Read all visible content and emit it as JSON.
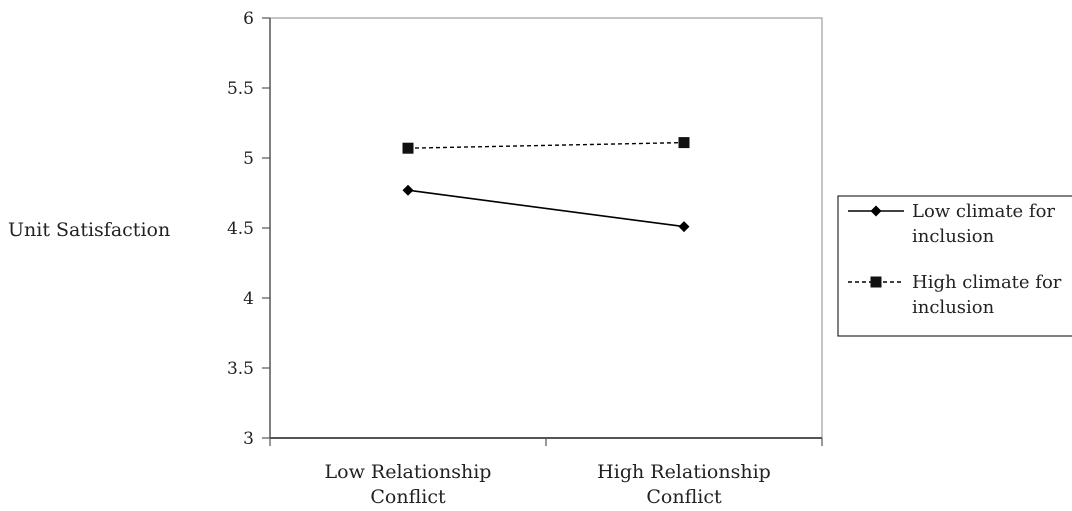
{
  "chart_data": {
    "type": "line",
    "title": "",
    "xlabel": "",
    "ylabel": "Unit Satisfaction",
    "categories": [
      [
        "Low Relationship",
        "Conflict"
      ],
      [
        "High Relationship",
        "Conflict"
      ]
    ],
    "ylim": [
      3,
      6
    ],
    "yticks": [
      "3",
      "3.5",
      "4",
      "4.5",
      "5",
      "5.5",
      "6"
    ],
    "series": [
      {
        "name": [
          "Low climate for",
          "inclusion"
        ],
        "values": [
          4.77,
          4.51
        ],
        "line_style": "solid",
        "marker": "diamond",
        "color": "#000000"
      },
      {
        "name": [
          "High climate for",
          "inclusion"
        ],
        "values": [
          5.07,
          5.11
        ],
        "line_style": "dashed",
        "marker": "square",
        "color": "#000000"
      }
    ],
    "grid": false,
    "legend_position": "right"
  }
}
